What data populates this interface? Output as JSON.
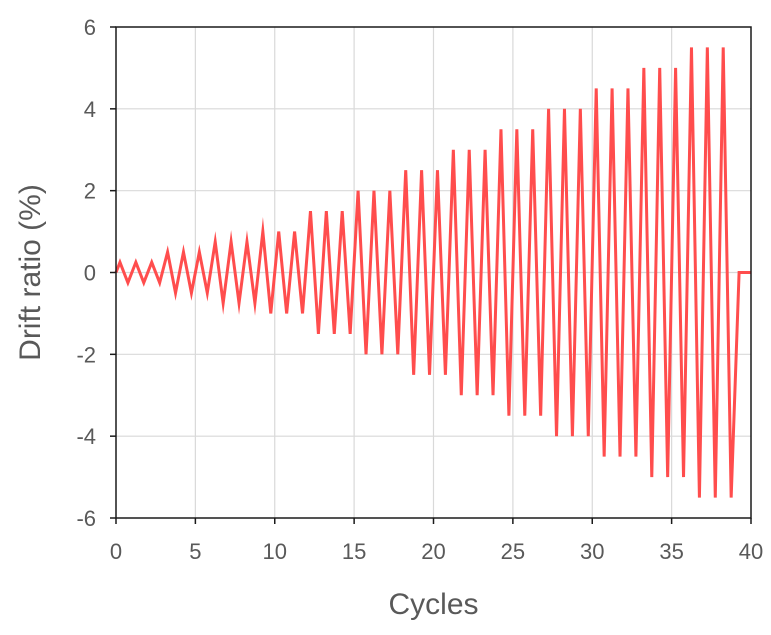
{
  "chart_data": {
    "type": "line",
    "title": "",
    "xlabel": "Cycles",
    "ylabel": "Drift ratio (%)",
    "xlim": [
      0,
      40
    ],
    "ylim": [
      -6,
      6
    ],
    "xticks": [
      0,
      5,
      10,
      15,
      20,
      25,
      30,
      35,
      40
    ],
    "yticks": [
      -6,
      -4,
      -2,
      0,
      2,
      4,
      6
    ],
    "grid": true,
    "legend": "none",
    "series": [
      {
        "name": "Drift ratio",
        "color": "#ff4d4d",
        "x": [
          0,
          0.25,
          0.75,
          1.25,
          1.75,
          2.25,
          2.75,
          3.25,
          3.75,
          4.25,
          4.75,
          5.25,
          5.75,
          6.25,
          6.75,
          7.25,
          7.75,
          8.25,
          8.75,
          9.25,
          9.75,
          10.25,
          10.75,
          11.25,
          11.75,
          12.25,
          12.75,
          13.25,
          13.75,
          14.25,
          14.75,
          15.25,
          15.75,
          16.25,
          16.75,
          17.25,
          17.75,
          18.25,
          18.75,
          19.25,
          19.75,
          20.25,
          20.75,
          21.25,
          21.75,
          22.25,
          22.75,
          23.25,
          23.75,
          24.25,
          24.75,
          25.25,
          25.75,
          26.25,
          26.75,
          27.25,
          27.75,
          28.25,
          28.75,
          29.25,
          29.75,
          30.25,
          30.75,
          31.25,
          31.75,
          32.25,
          32.75,
          33.25,
          33.75,
          34.25,
          34.75,
          35.25,
          35.75,
          36.25,
          36.75,
          37.25,
          37.75,
          38.25,
          38.75,
          39.25,
          40
        ],
        "y": [
          0,
          0.25,
          -0.25,
          0.25,
          -0.25,
          0.25,
          -0.25,
          0.5,
          -0.5,
          0.5,
          -0.5,
          0.5,
          -0.5,
          0.75,
          -0.75,
          0.75,
          -0.75,
          0.75,
          -0.75,
          1.0,
          -1.0,
          1.0,
          -1.0,
          1.0,
          -1.0,
          1.5,
          -1.5,
          1.5,
          -1.5,
          1.5,
          -1.5,
          2.0,
          -2.0,
          2.0,
          -2.0,
          2.0,
          -2.0,
          2.5,
          -2.5,
          2.5,
          -2.5,
          2.5,
          -2.5,
          3.0,
          -3.0,
          3.0,
          -3.0,
          3.0,
          -3.0,
          3.5,
          -3.5,
          3.5,
          -3.5,
          3.5,
          -3.5,
          4.0,
          -4.0,
          4.0,
          -4.0,
          4.0,
          -4.0,
          4.5,
          -4.5,
          4.5,
          -4.5,
          4.5,
          -4.5,
          5.0,
          -5.0,
          5.0,
          -5.0,
          5.0,
          -5.0,
          5.5,
          -5.5,
          5.5,
          -5.5,
          5.5,
          -5.5,
          0,
          0
        ]
      }
    ]
  }
}
